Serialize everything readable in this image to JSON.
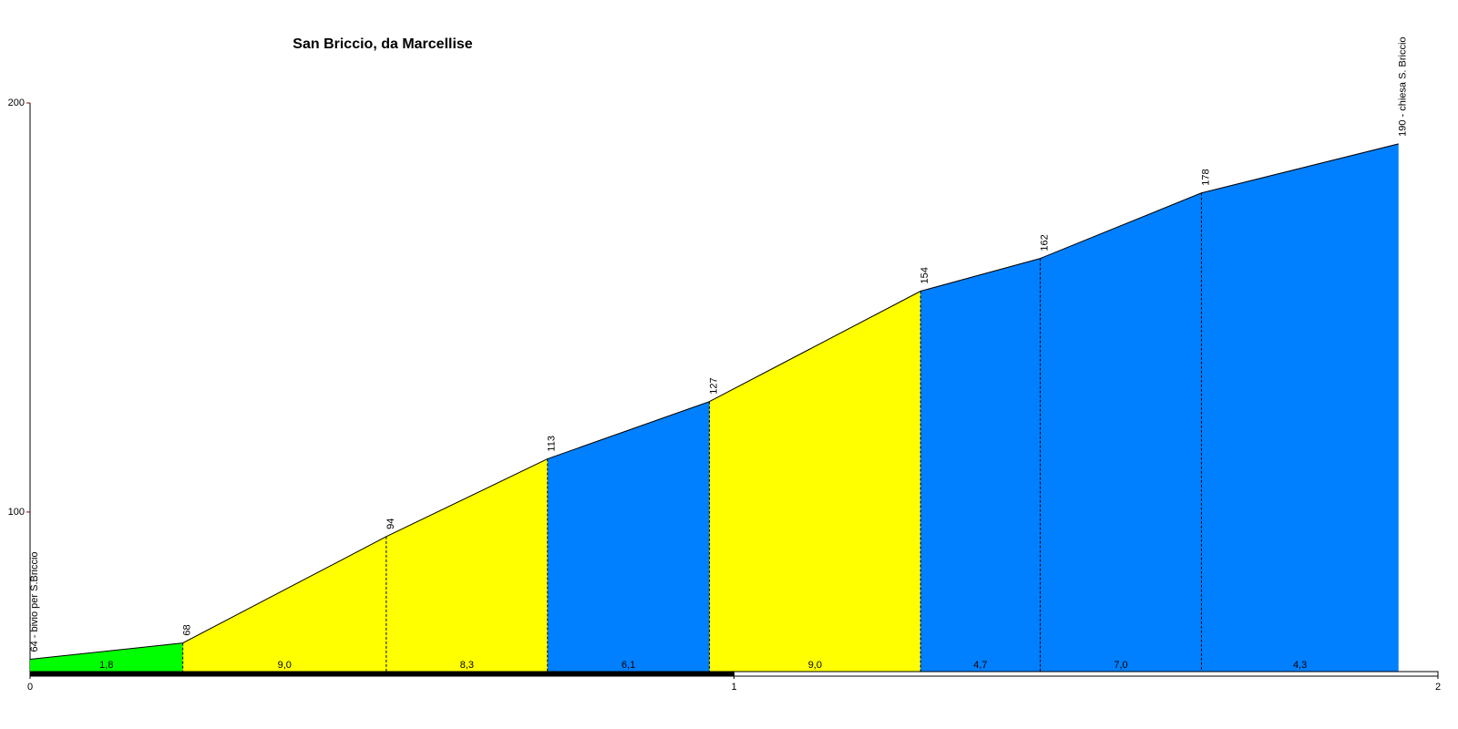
{
  "chart_data": {
    "type": "elevation-profile",
    "title": "San Briccio, da Marcellise",
    "x": [
      0,
      0.217,
      0.506,
      0.735,
      0.965,
      1.265,
      1.435,
      1.664,
      1.944
    ],
    "values": [
      64,
      68,
      94,
      113,
      127,
      154,
      162,
      178,
      190
    ],
    "value_labels": [
      "64 - bivio per S.Briccio",
      "68",
      "94",
      "113",
      "127",
      "154",
      "162",
      "178",
      "190 - chiesa S. Briccio"
    ],
    "segments": {
      "values": [
        1.8,
        9.0,
        8.3,
        6.1,
        9.0,
        4.7,
        7.0,
        4.3
      ],
      "value_labels": [
        "1,8",
        "9,0",
        "8,3",
        "6,1",
        "9,0",
        "4,7",
        "7,0",
        "4,3"
      ],
      "colors": [
        "#00ff00",
        "#ffff00",
        "#ffff00",
        "#0080ff",
        "#ffff00",
        "#0080ff",
        "#0080ff",
        "#0080ff"
      ]
    },
    "xlim": [
      0,
      2
    ],
    "xticks": [
      0,
      1,
      2
    ],
    "ylim": [
      61,
      200
    ],
    "yticks": [
      100,
      200
    ]
  }
}
